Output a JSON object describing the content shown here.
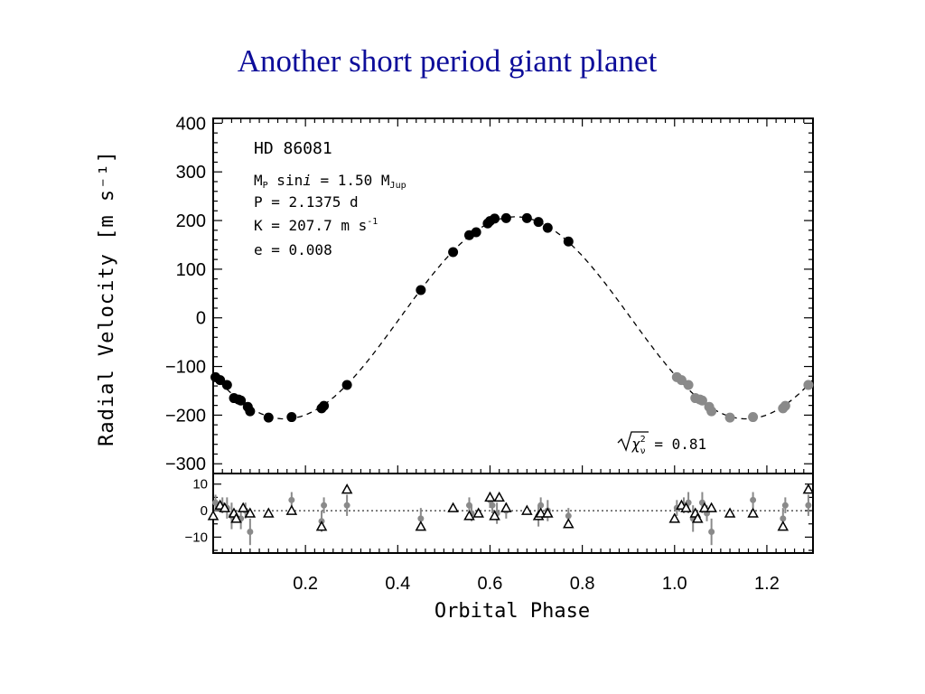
{
  "title": "Another short period giant planet",
  "chart_data": [
    {
      "type": "scatter",
      "star": "HD 86081",
      "ylabel": "Radial Velocity [m s⁻¹]",
      "xlim": [
        0,
        1.3
      ],
      "ylim": [
        -320,
        410
      ],
      "yticks": [
        -300,
        -200,
        -100,
        0,
        100,
        200,
        300,
        400
      ],
      "ytick_labels": [
        "−300",
        "−200",
        "−100",
        "0",
        "100",
        "200",
        "300",
        "400"
      ],
      "params": {
        "mass_label": "M",
        "mass_sub": "P",
        "mass_mid": " sin",
        "mass_i": "i",
        "mass_value": " = 1.50 M",
        "mass_unit_sub": "Jup",
        "period": "P = 2.1375 d",
        "amplitude": "K = 207.7 m s",
        "amplitude_sup": "-1",
        "eccentricity": "e = 0.008"
      },
      "chi2_label": "χ",
      "chi2_sup": "2",
      "chi2_sub": "ν",
      "chi2_value": " = 0.81",
      "fit": {
        "K": 207.7,
        "period_days": 2.1375,
        "phase_of_max": 0.655,
        "style": "dashed"
      },
      "series": [
        {
          "name": "",
          "color": "#000000",
          "x": [
            0.005,
            0.015,
            0.03,
            0.045,
            0.055,
            0.06,
            0.075,
            0.08,
            0.12,
            0.17,
            0.235,
            0.24,
            0.29,
            0.45,
            0.52,
            0.555,
            0.57,
            0.595,
            0.6,
            0.61,
            0.635,
            0.68,
            0.705,
            0.725,
            0.77
          ],
          "y": [
            -122,
            -128,
            -138,
            -165,
            -168,
            -170,
            -183,
            -192,
            -205,
            -204,
            -186,
            -181,
            -138,
            57,
            135,
            170,
            176,
            194,
            199,
            204,
            205,
            205,
            197,
            185,
            157
          ]
        },
        {
          "name": "",
          "color": "#8a8a8a",
          "x": [
            1.005,
            1.015,
            1.03,
            1.045,
            1.055,
            1.06,
            1.075,
            1.08,
            1.12,
            1.17,
            1.235,
            1.24,
            1.29
          ],
          "y": [
            -122,
            -128,
            -138,
            -165,
            -168,
            -170,
            -183,
            -192,
            -205,
            -204,
            -186,
            -181,
            -138
          ]
        }
      ]
    },
    {
      "type": "scatter",
      "xlabel": "Orbital Phase",
      "xlim": [
        0,
        1.3
      ],
      "ylim": [
        -16,
        14
      ],
      "yticks": [
        -10,
        0,
        10
      ],
      "ytick_labels": [
        "−10",
        "0",
        "10"
      ],
      "xticks": [
        0.2,
        0.4,
        0.6,
        0.8,
        1.0,
        1.2
      ],
      "xtick_labels": [
        "0.2",
        "0.4",
        "0.6",
        "0.8",
        "1.0",
        "1.2"
      ],
      "series": [
        {
          "name": "",
          "marker": "triangle",
          "color": "#000000",
          "x": [
            0.0,
            0.015,
            0.025,
            0.045,
            0.05,
            0.065,
            0.08,
            0.12,
            0.17,
            0.235,
            0.29,
            0.45,
            0.52,
            0.555,
            0.575,
            0.6,
            0.61,
            0.62,
            0.635,
            0.68,
            0.705,
            0.71,
            0.725,
            0.77,
            1.0,
            1.015,
            1.025,
            1.045,
            1.05,
            1.065,
            1.08,
            1.12,
            1.17,
            1.235,
            1.29
          ],
          "y": [
            -2,
            2,
            1,
            -1,
            -3,
            1,
            -1,
            -1,
            0,
            -6,
            8,
            -6,
            1,
            -2,
            -1,
            5,
            -2,
            5,
            1,
            0,
            -2,
            -1,
            -1,
            -5,
            -3,
            2,
            1,
            -1,
            -3,
            1,
            1,
            -1,
            -1,
            -6,
            8
          ]
        },
        {
          "name": "",
          "marker": "dot",
          "color": "#8a8a8a",
          "x": [
            0.005,
            0.02,
            0.03,
            0.04,
            0.06,
            0.07,
            0.08,
            0.17,
            0.235,
            0.24,
            0.29,
            0.45,
            0.555,
            0.56,
            0.6,
            0.605,
            0.615,
            0.635,
            0.705,
            0.71,
            0.725,
            0.77,
            1.005,
            1.02,
            1.03,
            1.04,
            1.06,
            1.07,
            1.08,
            1.17,
            1.235,
            1.24,
            1.29
          ],
          "y": [
            3,
            2,
            1,
            -2,
            -3,
            0,
            -8,
            4,
            -4,
            2,
            2,
            -3,
            2,
            -1,
            4,
            2,
            -1,
            0,
            -2,
            2,
            0,
            -2,
            1,
            2,
            3,
            -3,
            3,
            -1,
            -8,
            4,
            -3,
            2,
            2
          ],
          "err": [
            3,
            3,
            4,
            5,
            4,
            3,
            5,
            3,
            4,
            3,
            4,
            4,
            3,
            3,
            3,
            3,
            4,
            3,
            4,
            3,
            4,
            3,
            3,
            3,
            4,
            5,
            4,
            3,
            5,
            3,
            4,
            3,
            4
          ]
        }
      ]
    }
  ]
}
